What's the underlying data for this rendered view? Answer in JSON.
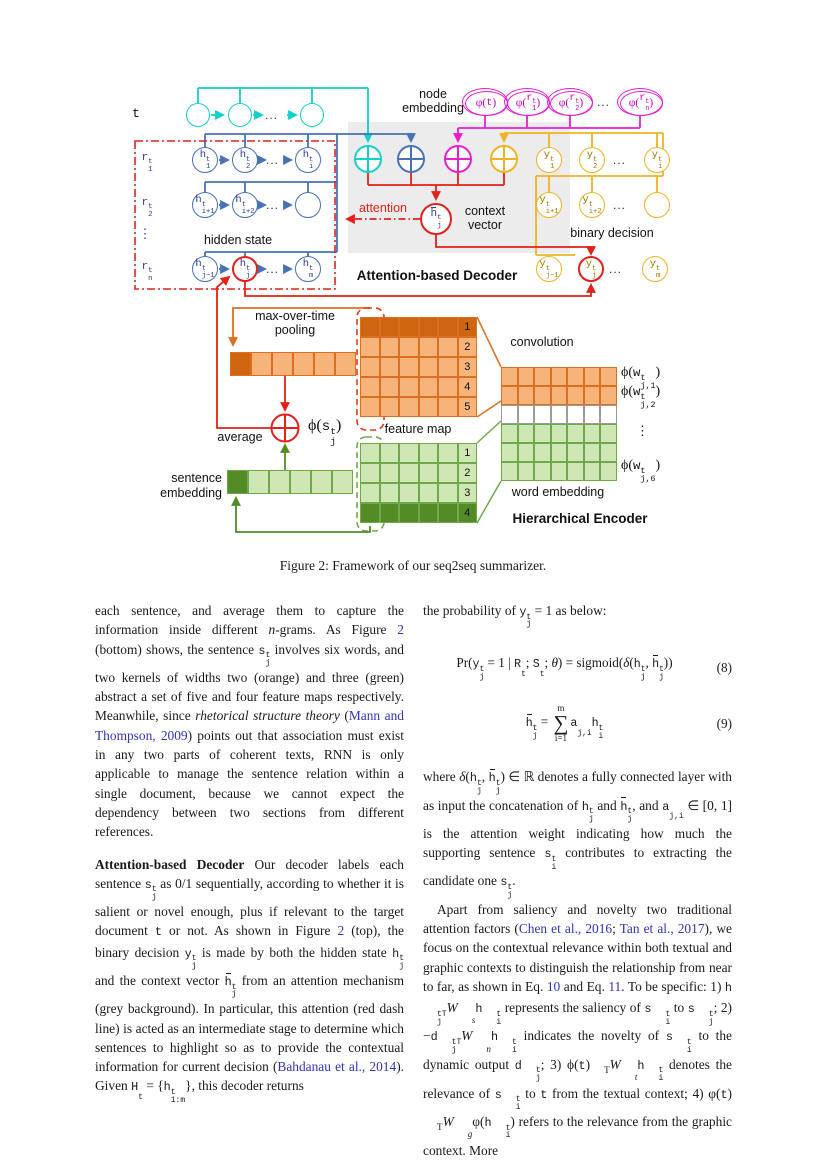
{
  "colors": {
    "cyan": "#12d0ca",
    "blue": "#4672b8",
    "magenta": "#e81ed2",
    "yellow": "#f0b323",
    "red": "#e32119",
    "orange": "#dd7020",
    "orange_light": "#f6b47b",
    "orange_dark": "#d0650f",
    "green": "#71a84b",
    "green_light": "#cfe7b5",
    "green_dark": "#538c26",
    "link_blue": "#3333bb",
    "grey_panel": "#ececec"
  },
  "figure": {
    "t_label": "t",
    "node_embedding": [
      "node",
      "embedding"
    ],
    "dots": "...",
    "vdots": "⋮",
    "phi_t": [
      {
        "t": "φ("
      },
      {
        "t": "t",
        "c": "tt"
      },
      {
        "t": ")"
      }
    ],
    "phi_r1": [
      {
        "t": "φ("
      },
      {
        "b": "r",
        "sup": "t",
        "sub": "1",
        "c": "tt"
      },
      {
        "t": ")"
      }
    ],
    "phi_r2": [
      {
        "t": "φ("
      },
      {
        "b": "r",
        "sup": "t",
        "sub": "2",
        "c": "tt"
      },
      {
        "t": ")"
      }
    ],
    "phi_rn": [
      {
        "t": "φ("
      },
      {
        "b": "r",
        "sup": "t",
        "sub": "n",
        "c": "tt"
      },
      {
        "t": ")"
      }
    ],
    "r1": [
      {
        "b": "r",
        "sup": "t",
        "sub": "1"
      }
    ],
    "r2": [
      {
        "b": "r",
        "sup": "t",
        "sub": "2"
      }
    ],
    "rn": [
      {
        "b": "r",
        "sup": "t",
        "sub": "n"
      }
    ],
    "h1": [
      {
        "b": "h",
        "sup": "t",
        "sub": "1"
      }
    ],
    "h2": [
      {
        "b": "h",
        "sup": "t",
        "sub": "2"
      }
    ],
    "hi": [
      {
        "b": "h",
        "sup": "t",
        "sub": "i"
      }
    ],
    "hi1": [
      {
        "b": "h",
        "sup": "t",
        "sub": "i+1"
      }
    ],
    "hi2": [
      {
        "b": "h",
        "sup": "t",
        "sub": "i+2"
      }
    ],
    "hj1": [
      {
        "b": "h",
        "sup": "t",
        "sub": "j−1"
      }
    ],
    "hj": [
      {
        "b": "h",
        "sup": "t",
        "sub": "j"
      }
    ],
    "hm": [
      {
        "b": "h",
        "sup": "t",
        "sub": "m"
      }
    ],
    "hbar": [
      {
        "b": "h",
        "ov": true,
        "sup": "t",
        "sub": "j"
      }
    ],
    "y1": [
      {
        "b": "y",
        "sup": "t",
        "sub": "1"
      }
    ],
    "y2": [
      {
        "b": "y",
        "sup": "t",
        "sub": "2"
      }
    ],
    "yi": [
      {
        "b": "y",
        "sup": "t",
        "sub": "i"
      }
    ],
    "yi1": [
      {
        "b": "y",
        "sup": "t",
        "sub": "i+1"
      }
    ],
    "yi2": [
      {
        "b": "y",
        "sup": "t",
        "sub": "i+2"
      }
    ],
    "yj1": [
      {
        "b": "y",
        "sup": "t",
        "sub": "j−1"
      }
    ],
    "yj": [
      {
        "b": "y",
        "sup": "t",
        "sub": "j"
      }
    ],
    "ym": [
      {
        "b": "y",
        "sup": "t",
        "sub": "m"
      }
    ],
    "hidden_state": "hidden state",
    "attention": "attention",
    "context_vector": [
      "context",
      "vector"
    ],
    "decoder_title": "Attention-based Decoder",
    "binary_decision": "binary decision",
    "pooling": [
      "max-over-time",
      "pooling"
    ],
    "average": "average",
    "phi_s": [
      {
        "t": "ϕ("
      },
      {
        "b": "s",
        "sup": "t",
        "sub": "j",
        "c": "tt"
      },
      {
        "t": ")"
      }
    ],
    "feature_map": "feature map",
    "convolution": "convolution",
    "word_embedding": "word embedding",
    "encoder_title": "Hierarchical Encoder",
    "sentence_embedding": [
      "sentence",
      "embedding"
    ],
    "phi_w1": [
      {
        "t": "ϕ("
      },
      {
        "b": "w",
        "sup": "t",
        "sub": "j,1",
        "c": "tt"
      },
      {
        "t": ")"
      }
    ],
    "phi_w2": [
      {
        "t": "ϕ("
      },
      {
        "b": "w",
        "sup": "t",
        "sub": "j,2",
        "c": "tt"
      },
      {
        "t": ")"
      }
    ],
    "phi_w6": [
      {
        "t": "ϕ("
      },
      {
        "b": "w",
        "sup": "t",
        "sub": "j,6",
        "c": "tt"
      },
      {
        "t": ")"
      }
    ]
  },
  "grids": {
    "orange_map": {
      "rows": 5,
      "cols": 6,
      "cls": "o",
      "dark_rows": [
        0
      ],
      "row_labels": [
        "1",
        "2",
        "3",
        "4",
        "5"
      ]
    },
    "green_map": {
      "rows": 4,
      "cols": 6,
      "cls": "g",
      "dark_rows": [
        3
      ],
      "row_labels": [
        "1",
        "2",
        "3",
        "4"
      ]
    },
    "word": {
      "rows": 6,
      "cols": 7,
      "row_classes": [
        "o",
        "o",
        "w",
        "g",
        "g",
        "g"
      ]
    },
    "orange_vec": {
      "rows": 1,
      "cols": 6,
      "cls": "o",
      "dark_cols": [
        0
      ]
    },
    "green_vec": {
      "rows": 1,
      "cols": 6,
      "cls": "g",
      "dark_cols": [
        0
      ]
    }
  },
  "caption": "Figure 2: Framework of our seq2seq summarizer.",
  "columns": {
    "left": [
      {
        "type": "p",
        "content": [
          {
            "t": "each sentence, and average them to capture the information inside different "
          },
          {
            "t": "n",
            "c": "it"
          },
          {
            "t": "-grams. As Figure "
          },
          {
            "t": "2",
            "c": "link"
          },
          {
            "t": " (bottom) shows, the sentence "
          },
          {
            "b": "s",
            "sup": "t",
            "sub": "j",
            "c": "tt"
          },
          {
            "t": " involves six words, and two kernels of widths two (orange) and three (green) abstract a set of five and four feature maps respectively. Meanwhile, since "
          },
          {
            "t": "rhetorical structure theory",
            "c": "it"
          },
          {
            "t": " ("
          },
          {
            "t": "Mann and Thompson, 2009",
            "c": "link"
          },
          {
            "t": ") points out that association must exist in any two parts of coherent texts, RNN is only applicable to manage the sentence relation within a single document, because we cannot expect the dependency between two sections from different references."
          }
        ]
      },
      {
        "type": "p",
        "cls": "sp",
        "content": [
          {
            "t": "Attention-based Decoder",
            "c": "b"
          },
          {
            "t": " Our decoder labels each sentence "
          },
          {
            "b": "s",
            "sup": "t",
            "sub": "j",
            "c": "tt"
          },
          {
            "t": " as 0/1 sequentially, according to whether it is salient or novel enough, plus if relevant to the target document "
          },
          {
            "t": "t",
            "c": "tt"
          },
          {
            "t": " or not. As shown in Figure "
          },
          {
            "t": "2",
            "c": "link"
          },
          {
            "t": " (top), the binary decision "
          },
          {
            "b": "y",
            "sup": "t",
            "sub": "j",
            "c": "tt"
          },
          {
            "t": " is made by both the hidden state "
          },
          {
            "b": "h",
            "sup": "t",
            "sub": "j",
            "c": "tt"
          },
          {
            "t": " and the context vector "
          },
          {
            "b": "h",
            "ov": true,
            "sup": "t",
            "sub": "j",
            "c": "tt"
          },
          {
            "t": " from an attention mechanism (grey background). In particular, this attention (red dash line) is acted as an intermediate stage to determine which sentences to highlight so as to provide the contextual information for current decision ("
          },
          {
            "t": "Bahdanau et al., 2014",
            "c": "link"
          },
          {
            "t": "). Given "
          },
          {
            "b": "H",
            "sub": "t",
            "c": "tt"
          },
          {
            "t": " = {"
          },
          {
            "b": "h",
            "sup": "t",
            "sub": "1:m",
            "c": "tt"
          },
          {
            "t": "}, this decoder returns"
          }
        ]
      }
    ],
    "right": [
      {
        "type": "p",
        "content": [
          {
            "t": "the probability of "
          },
          {
            "b": "y",
            "sup": "t",
            "sub": "j",
            "c": "tt"
          },
          {
            "t": " = 1 as below:"
          }
        ]
      },
      {
        "type": "eq",
        "cls": "eq8",
        "number": "(8)",
        "content": [
          {
            "t": "Pr("
          },
          {
            "b": "y",
            "sup": "t",
            "sub": "j",
            "c": "tt"
          },
          {
            "t": " = 1 | "
          },
          {
            "b": "R",
            "sub": "t",
            "c": "tt"
          },
          {
            "t": "; "
          },
          {
            "b": "S",
            "sub": "t",
            "c": "tt"
          },
          {
            "t": "; "
          },
          {
            "t": "θ",
            "c": "it"
          },
          {
            "t": ") = sigmoid("
          },
          {
            "t": "δ",
            "c": "it"
          },
          {
            "t": "("
          },
          {
            "b": "h",
            "sup": "t",
            "sub": "j",
            "c": "tt"
          },
          {
            "t": ", "
          },
          {
            "b": "h",
            "ov": true,
            "sup": "t",
            "sub": "j",
            "c": "tt"
          },
          {
            "t": "))"
          }
        ]
      },
      {
        "type": "eq",
        "cls": "eq9",
        "number": "(9)",
        "content": [
          {
            "b": "h",
            "ov": true,
            "sup": "t",
            "sub": "j",
            "c": "tt"
          },
          {
            "t": " = "
          },
          {
            "sum": {
              "top": "m",
              "bot": "i=1"
            }
          },
          {
            "b": "a",
            "sub": "j,i",
            "c": "tt"
          },
          {
            "b": "h",
            "sup": "t",
            "sub": "i",
            "c": "tt"
          }
        ]
      },
      {
        "type": "p",
        "content": [
          {
            "t": "where "
          },
          {
            "t": "δ",
            "c": "it"
          },
          {
            "t": "("
          },
          {
            "b": "h",
            "sup": "t",
            "sub": "j",
            "c": "tt"
          },
          {
            "t": ", "
          },
          {
            "b": "h",
            "ov": true,
            "sup": "t",
            "sub": "j",
            "c": "tt"
          },
          {
            "t": ") ∈ ℝ denotes a fully connected layer with as input the concatenation of "
          },
          {
            "b": "h",
            "sup": "t",
            "sub": "j",
            "c": "tt"
          },
          {
            "t": " and "
          },
          {
            "b": "h",
            "ov": true,
            "sup": "t",
            "sub": "j",
            "c": "tt"
          },
          {
            "t": ", and "
          },
          {
            "b": "a",
            "sub": "j,i",
            "c": "tt"
          },
          {
            "t": " ∈ [0, 1] is the attention weight indicating how much the supporting sentence "
          },
          {
            "b": "s",
            "sup": "t",
            "sub": "i",
            "c": "tt"
          },
          {
            "t": " contributes to extracting the candidate one "
          },
          {
            "b": "s",
            "sup": "t",
            "sub": "j",
            "c": "tt"
          },
          {
            "t": "."
          }
        ]
      },
      {
        "type": "p",
        "cls": "ind",
        "content": [
          {
            "t": "Apart from saliency and novelty two traditional attention factors ("
          },
          {
            "t": "Chen et al., 2016",
            "c": "link"
          },
          {
            "t": "; "
          },
          {
            "t": "Tan et al., 2017",
            "c": "link"
          },
          {
            "t": "), we focus on the contextual relevance within both textual and graphic contexts to distinguish the relationship from near to far, as shown in Eq. "
          },
          {
            "t": "10",
            "c": "link"
          },
          {
            "t": " and Eq. "
          },
          {
            "t": "11",
            "c": "link"
          },
          {
            "t": ". To be specific: 1) "
          },
          {
            "b": "h",
            "sup": "tT",
            "sub": "j",
            "c": "tt"
          },
          {
            "b": "W",
            "sub": "s",
            "c": "itv"
          },
          {
            "b": "h",
            "sup": "t",
            "sub": "i",
            "c": "tt"
          },
          {
            "t": " represents the saliency of "
          },
          {
            "b": "s",
            "sup": "t",
            "sub": "i",
            "c": "tt"
          },
          {
            "t": " to "
          },
          {
            "b": "s",
            "sup": "t",
            "sub": "j",
            "c": "tt"
          },
          {
            "t": "; 2) −"
          },
          {
            "b": "d",
            "sup": "tT",
            "sub": "j",
            "c": "tt"
          },
          {
            "b": "W",
            "sub": "n",
            "c": "itv"
          },
          {
            "b": "h",
            "sup": "t",
            "sub": "i",
            "c": "tt"
          },
          {
            "t": " indicates the novelty of "
          },
          {
            "b": "s",
            "sup": "t",
            "sub": "i",
            "c": "tt"
          },
          {
            "t": " to the dynamic output "
          },
          {
            "b": "d",
            "sup": "t",
            "sub": "j",
            "c": "tt"
          },
          {
            "t": "; 3) "
          },
          {
            "t": "ϕ("
          },
          {
            "t": "t",
            "c": "tt"
          },
          {
            "b": ")",
            "sup": "T"
          },
          {
            "b": "W",
            "sub": "t",
            "c": "itv"
          },
          {
            "b": "h",
            "sup": "t",
            "sub": "i",
            "c": "tt"
          },
          {
            "t": " denotes the relevance of "
          },
          {
            "b": "s",
            "sup": "t",
            "sub": "i",
            "c": "tt"
          },
          {
            "t": " to "
          },
          {
            "t": "t",
            "c": "tt"
          },
          {
            "t": " from the textual context; 4) "
          },
          {
            "t": "φ("
          },
          {
            "t": "t",
            "c": "tt"
          },
          {
            "b": ")",
            "sup": "T"
          },
          {
            "b": "W",
            "sub": "g",
            "c": "itv"
          },
          {
            "t": "φ("
          },
          {
            "b": "h",
            "sup": "t",
            "sub": "i",
            "c": "tt"
          },
          {
            "t": ") refers to the relevance from the graphic context. More"
          }
        ]
      }
    ]
  }
}
